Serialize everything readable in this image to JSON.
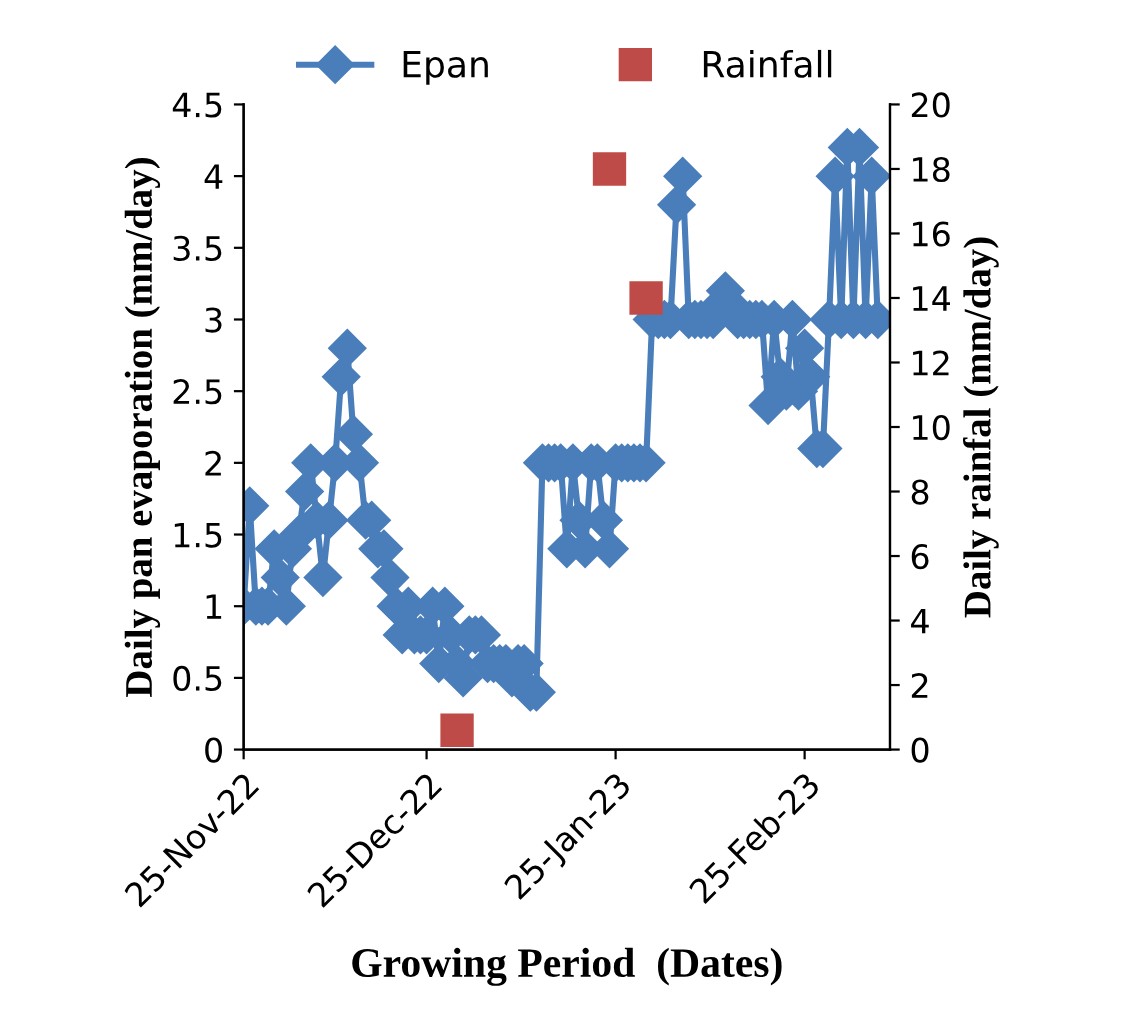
{
  "chart_data": {
    "type": "line",
    "xlabel": "Growing Period  (Dates)",
    "ylabel": "Daily pan evaporation (mm/day)",
    "y2label": "Daily rainfal (mm/day)",
    "xlim": [
      "2022-11-25",
      "2023-03-11"
    ],
    "xticks": [
      {
        "value": "2022-11-25",
        "label": "25-Nov-22"
      },
      {
        "value": "2022-12-25",
        "label": "25-Dec-22"
      },
      {
        "value": "2023-01-25",
        "label": "25-Jan-23"
      },
      {
        "value": "2023-02-25",
        "label": "25-Feb-23"
      }
    ],
    "ylim": [
      0,
      4.5
    ],
    "yticks": [
      0,
      0.5,
      1,
      1.5,
      2,
      2.5,
      3,
      3.5,
      4,
      4.5
    ],
    "y2lim": [
      0,
      20
    ],
    "y2ticks": [
      0,
      2,
      4,
      6,
      8,
      10,
      12,
      14,
      16,
      18,
      20
    ],
    "grid": false,
    "legend": "top",
    "series": [
      {
        "name": "Epan",
        "color": "#4a7ebb",
        "marker": "diamond",
        "line_style": "solid",
        "x": [
          "2022-11-25",
          "2022-11-26",
          "2022-11-27",
          "2022-11-28",
          "2022-11-29",
          "2022-11-30",
          "2022-12-01",
          "2022-12-02",
          "2022-12-03",
          "2022-12-04",
          "2022-12-05",
          "2022-12-06",
          "2022-12-07",
          "2022-12-08",
          "2022-12-09",
          "2022-12-10",
          "2022-12-11",
          "2022-12-12",
          "2022-12-13",
          "2022-12-14",
          "2022-12-15",
          "2022-12-16",
          "2022-12-17",
          "2022-12-18",
          "2022-12-19",
          "2022-12-20",
          "2022-12-21",
          "2022-12-22",
          "2022-12-23",
          "2022-12-24",
          "2022-12-25",
          "2022-12-26",
          "2022-12-27",
          "2022-12-28",
          "2022-12-29",
          "2022-12-30",
          "2022-12-31",
          "2023-01-01",
          "2023-01-02",
          "2023-01-03",
          "2023-01-04",
          "2023-01-05",
          "2023-01-06",
          "2023-01-07",
          "2023-01-08",
          "2023-01-09",
          "2023-01-10",
          "2023-01-11",
          "2023-01-12",
          "2023-01-13",
          "2023-01-14",
          "2023-01-15",
          "2023-01-16",
          "2023-01-17",
          "2023-01-18",
          "2023-01-19",
          "2023-01-20",
          "2023-01-21",
          "2023-01-22",
          "2023-01-23",
          "2023-01-24",
          "2023-01-25",
          "2023-01-26",
          "2023-01-27",
          "2023-01-28",
          "2023-01-29",
          "2023-01-30",
          "2023-01-31",
          "2023-02-01",
          "2023-02-02",
          "2023-02-03",
          "2023-02-04",
          "2023-02-05",
          "2023-02-06",
          "2023-02-07",
          "2023-02-08",
          "2023-02-09",
          "2023-02-10",
          "2023-02-11",
          "2023-02-12",
          "2023-02-13",
          "2023-02-14",
          "2023-02-15",
          "2023-02-16",
          "2023-02-17",
          "2023-02-18",
          "2023-02-19",
          "2023-02-20",
          "2023-02-21",
          "2023-02-22",
          "2023-02-23",
          "2023-02-24",
          "2023-02-25",
          "2023-02-26",
          "2023-02-27",
          "2023-02-28",
          "2023-03-01",
          "2023-03-02",
          "2023-03-03",
          "2023-03-04",
          "2023-03-05",
          "2023-03-06",
          "2023-03-07",
          "2023-03-08",
          "2023-03-09"
        ],
        "values": [
          1.0,
          1.7,
          1.0,
          1.0,
          1.0,
          1.4,
          1.2,
          1.0,
          1.4,
          1.5,
          1.8,
          2.0,
          1.6,
          1.2,
          1.6,
          2.0,
          2.6,
          2.8,
          2.2,
          2.0,
          1.6,
          1.6,
          1.4,
          1.4,
          1.2,
          1.0,
          0.8,
          1.0,
          0.8,
          0.8,
          0.8,
          1.0,
          0.6,
          1.0,
          0.8,
          0.6,
          0.5,
          0.8,
          0.8,
          0.8,
          0.6,
          0.6,
          0.6,
          0.6,
          0.5,
          0.6,
          0.6,
          0.4,
          0.4,
          2.0,
          2.0,
          2.0,
          2.0,
          1.4,
          2.0,
          1.6,
          1.4,
          2.0,
          2.0,
          1.6,
          1.4,
          2.0,
          2.0,
          2.0,
          2.0,
          2.0,
          2.0,
          3.0,
          3.0,
          3.0,
          3.0,
          3.8,
          4.0,
          3.0,
          3.0,
          3.0,
          3.0,
          3.0,
          3.1,
          3.2,
          3.1,
          3.0,
          3.0,
          3.0,
          3.0,
          3.0,
          2.4,
          3.0,
          2.6,
          2.5,
          3.0,
          2.5,
          2.8,
          2.6,
          2.1,
          2.1,
          3.0,
          4.0,
          3.0,
          4.2,
          3.0,
          4.2,
          3.0,
          4.0,
          3.0
        ]
      },
      {
        "name": "Rainfall",
        "type": "scatter",
        "axis": "y2",
        "color": "#be4b48",
        "marker": "square",
        "x": [
          "2022-12-30",
          "2023-01-24",
          "2023-01-30"
        ],
        "values": [
          0.6,
          18,
          14
        ]
      }
    ]
  }
}
